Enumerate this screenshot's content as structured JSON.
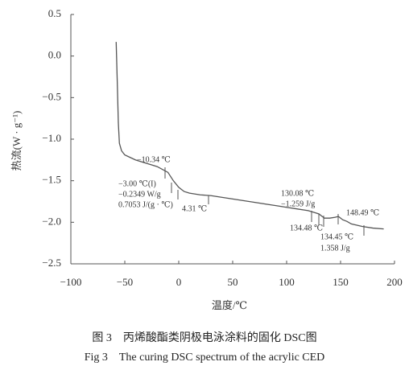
{
  "chart_data": {
    "type": "line",
    "xlabel": "温度/℃",
    "ylabel": "热流(W · g⁻¹)",
    "x": [
      -58,
      -57,
      -56,
      -55,
      -53,
      -50,
      -45,
      -40,
      -30,
      -20,
      -10,
      -5,
      0,
      5,
      10,
      20,
      30,
      50,
      70,
      90,
      100,
      110,
      120,
      125,
      130,
      133,
      135,
      138,
      140,
      145,
      148,
      152,
      156,
      160,
      170,
      180,
      190
    ],
    "series": [
      {
        "color": "#555555",
        "values": [
          0.17,
          -0.3,
          -0.8,
          -1.05,
          -1.14,
          -1.19,
          -1.22,
          -1.25,
          -1.29,
          -1.33,
          -1.4,
          -1.5,
          -1.58,
          -1.63,
          -1.65,
          -1.67,
          -1.68,
          -1.72,
          -1.76,
          -1.8,
          -1.82,
          -1.84,
          -1.86,
          -1.88,
          -1.9,
          -1.93,
          -1.95,
          -1.95,
          -1.95,
          -1.94,
          -1.93,
          -1.97,
          -1.99,
          -2.02,
          -2.05,
          -2.07,
          -2.08
        ]
      }
    ],
    "xlim": [
      -100,
      200
    ],
    "xticks": [
      {
        "value": -100,
        "label": "−100"
      },
      {
        "value": -50,
        "label": "−50"
      },
      0,
      50,
      100,
      150,
      200
    ],
    "ylim": [
      -2.5,
      0.5
    ],
    "yticks": [
      0.5,
      {
        "value": 0,
        "label": "0.0"
      },
      {
        "value": -0.5,
        "label": "−0.5"
      },
      {
        "value": -1.0,
        "label": "−1.0"
      },
      {
        "value": -1.5,
        "label": "−1.5"
      },
      {
        "value": -2.0,
        "label": "−2.0"
      },
      {
        "value": -2.5,
        "label": "−2.5"
      }
    ],
    "annotations": [
      "−10.34 ℃",
      "−3.00 ℃(I)",
      "−0.2349 W/g",
      "0.7053 J/(g · ℃)",
      "4.31 ℃",
      "130.08 ℃",
      "−1.259 J/g",
      "134.48 ℃",
      "148.49 ℃",
      "134.45 ℃",
      "1.358 J/g"
    ],
    "caption_cn": "图 3　丙烯酸酯类阴极电泳涂料的固化 DSC图",
    "caption_en": "Fig 3　The curing DSC spectrum of the acrylic CED"
  }
}
